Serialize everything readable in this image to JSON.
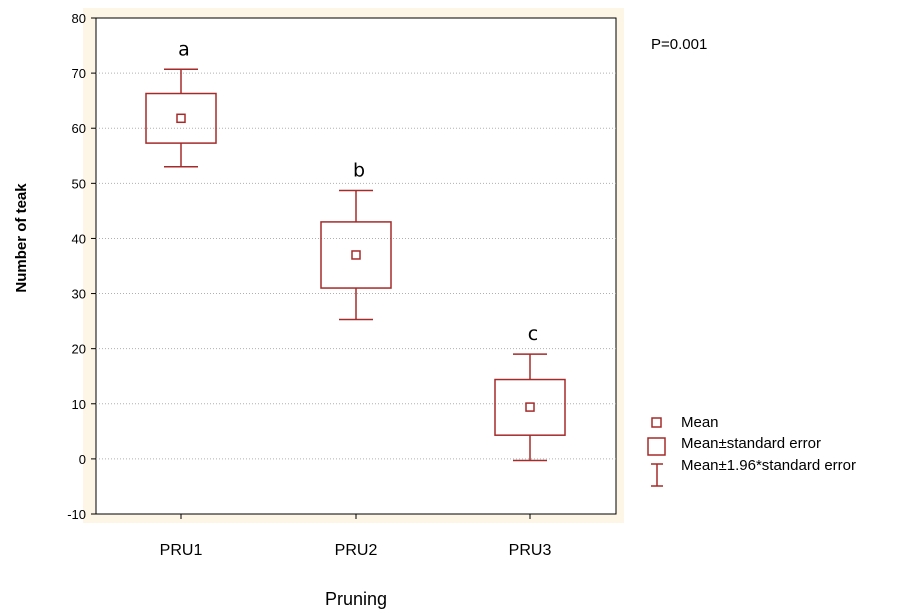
{
  "chart_data": {
    "type": "box",
    "xlabel": "Pruning",
    "ylabel": "Number of teak",
    "ylim": [
      -10,
      80
    ],
    "yticks": [
      "-10",
      "0",
      "10",
      "20",
      "30",
      "40",
      "50",
      "60",
      "70",
      "80"
    ],
    "grid": "horizontal dotted",
    "annotation": "P=0.001",
    "categories": [
      "PRU1",
      "PRU2",
      "PRU3"
    ],
    "groups": [
      {
        "category": "PRU1",
        "letter": "a",
        "mean": 61.8,
        "se_low": 57.3,
        "se_high": 66.3,
        "ci_low": 53.0,
        "ci_high": 70.7
      },
      {
        "category": "PRU2",
        "letter": "b",
        "mean": 37.0,
        "se_low": 31.0,
        "se_high": 43.0,
        "ci_low": 25.3,
        "ci_high": 48.7
      },
      {
        "category": "PRU3",
        "letter": "c",
        "mean": 9.4,
        "se_low": 4.3,
        "se_high": 14.4,
        "ci_low": -0.3,
        "ci_high": 19.0
      }
    ],
    "legend": {
      "position": "right",
      "entries": [
        "Mean",
        "Mean±standard error",
        "Mean±1.96*standard error"
      ]
    },
    "colors": {
      "marker": "#a52a2a",
      "plot_border": "#000000",
      "frame_background": "#fdf5e6",
      "grid": "#b0b0b0"
    }
  }
}
